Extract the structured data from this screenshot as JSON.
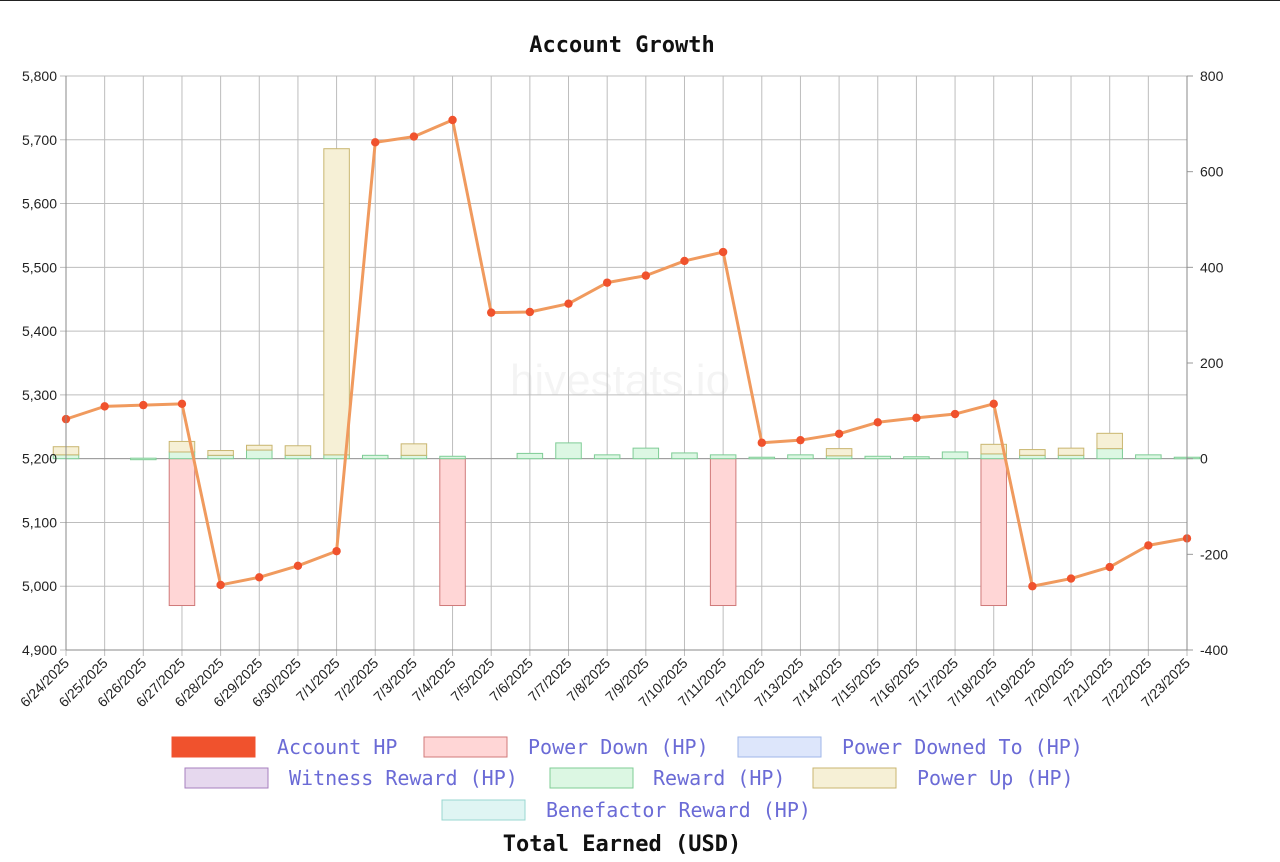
{
  "chart_data": {
    "type": "line",
    "title": "Account Growth",
    "footer_title": "Total Earned (USD)",
    "watermark": "hivestats.io",
    "categories": [
      "6/24/2025",
      "6/25/2025",
      "6/26/2025",
      "6/27/2025",
      "6/28/2025",
      "6/29/2025",
      "6/30/2025",
      "7/1/2025",
      "7/2/2025",
      "7/3/2025",
      "7/4/2025",
      "7/5/2025",
      "7/6/2025",
      "7/7/2025",
      "7/8/2025",
      "7/9/2025",
      "7/10/2025",
      "7/11/2025",
      "7/12/2025",
      "7/13/2025",
      "7/14/2025",
      "7/15/2025",
      "7/16/2025",
      "7/17/2025",
      "7/18/2025",
      "7/19/2025",
      "7/20/2025",
      "7/21/2025",
      "7/22/2025",
      "7/23/2025"
    ],
    "y_left": {
      "min": 4900,
      "max": 5800,
      "ticks": [
        "4,900",
        "5,000",
        "5,100",
        "5,200",
        "5,300",
        "5,400",
        "5,500",
        "5,600",
        "5,700",
        "5,800"
      ]
    },
    "y_right": {
      "min": -400,
      "max": 800,
      "ticks": [
        "-400",
        "-200",
        "0",
        "200",
        "400",
        "600",
        "800"
      ]
    },
    "grid": true,
    "legend_position": "bottom",
    "series": [
      {
        "name": "Account HP",
        "type": "line",
        "axis": "left",
        "color": "#f0522d",
        "values": [
          5262,
          5282,
          5284,
          5286,
          5002,
          5014,
          5032,
          5055,
          5696,
          5705,
          5731,
          5429,
          5430,
          5443,
          5476,
          5487,
          5510,
          5524,
          5225,
          5229,
          5239,
          5257,
          5264,
          5270,
          5286,
          5000,
          5012,
          5030,
          5064,
          5075
        ]
      },
      {
        "name": "Power Down (HP)",
        "type": "bar",
        "axis": "right",
        "color": "#ffd6d6",
        "border": "#d07a7a",
        "values": [
          0,
          0,
          0,
          -307,
          0,
          0,
          0,
          0,
          0,
          0,
          -307,
          0,
          0,
          0,
          0,
          0,
          0,
          -307,
          0,
          0,
          0,
          0,
          0,
          0,
          -307,
          0,
          0,
          0,
          0,
          0
        ]
      },
      {
        "name": "Power Downed To (HP)",
        "type": "bar",
        "axis": "right",
        "color": "#dde6fb",
        "border": "#9fb6e8",
        "values": [
          0,
          0,
          0,
          0,
          0,
          0,
          0,
          0,
          0,
          0,
          0,
          0,
          0,
          0,
          0,
          0,
          0,
          0,
          0,
          0,
          0,
          0,
          0,
          0,
          0,
          0,
          0,
          0,
          0,
          0
        ]
      },
      {
        "name": "Witness Reward (HP)",
        "type": "bar",
        "axis": "right",
        "color": "#e6d8ee",
        "border": "#a77fbf",
        "values": [
          0,
          0,
          0,
          0,
          0,
          0,
          0,
          0,
          0,
          0,
          0,
          0,
          0,
          0,
          0,
          0,
          0,
          0,
          0,
          0,
          0,
          0,
          0,
          0,
          0,
          0,
          0,
          0,
          0,
          0
        ]
      },
      {
        "name": "Reward (HP)",
        "type": "bar",
        "axis": "right",
        "color": "#dcf7e3",
        "border": "#7fcc96",
        "values": [
          8,
          0,
          1,
          14,
          7,
          18,
          7,
          8,
          7,
          7,
          5,
          0,
          11,
          33,
          8,
          22,
          12,
          8,
          3,
          8,
          6,
          5,
          4,
          14,
          10,
          7,
          7,
          21,
          8,
          3
        ]
      },
      {
        "name": "Power Up (HP)",
        "type": "bar",
        "axis": "right",
        "color": "#f6f0d6",
        "border": "#c9b670",
        "values": [
          17,
          0,
          0,
          22,
          10,
          10,
          20,
          640,
          0,
          24,
          0,
          0,
          0,
          0,
          0,
          0,
          0,
          0,
          0,
          0,
          15,
          0,
          0,
          0,
          20,
          12,
          15,
          32,
          0,
          0
        ]
      },
      {
        "name": "Benefactor Reward (HP)",
        "type": "bar",
        "axis": "right",
        "color": "#dff5f3",
        "border": "#98d7d0",
        "values": [
          0,
          0,
          0,
          0,
          0,
          0,
          0,
          0,
          0,
          0,
          0,
          0,
          0,
          0,
          0,
          0,
          0,
          0,
          0,
          0,
          0,
          0,
          0,
          0,
          0,
          0,
          0,
          0,
          0,
          0
        ]
      }
    ]
  }
}
